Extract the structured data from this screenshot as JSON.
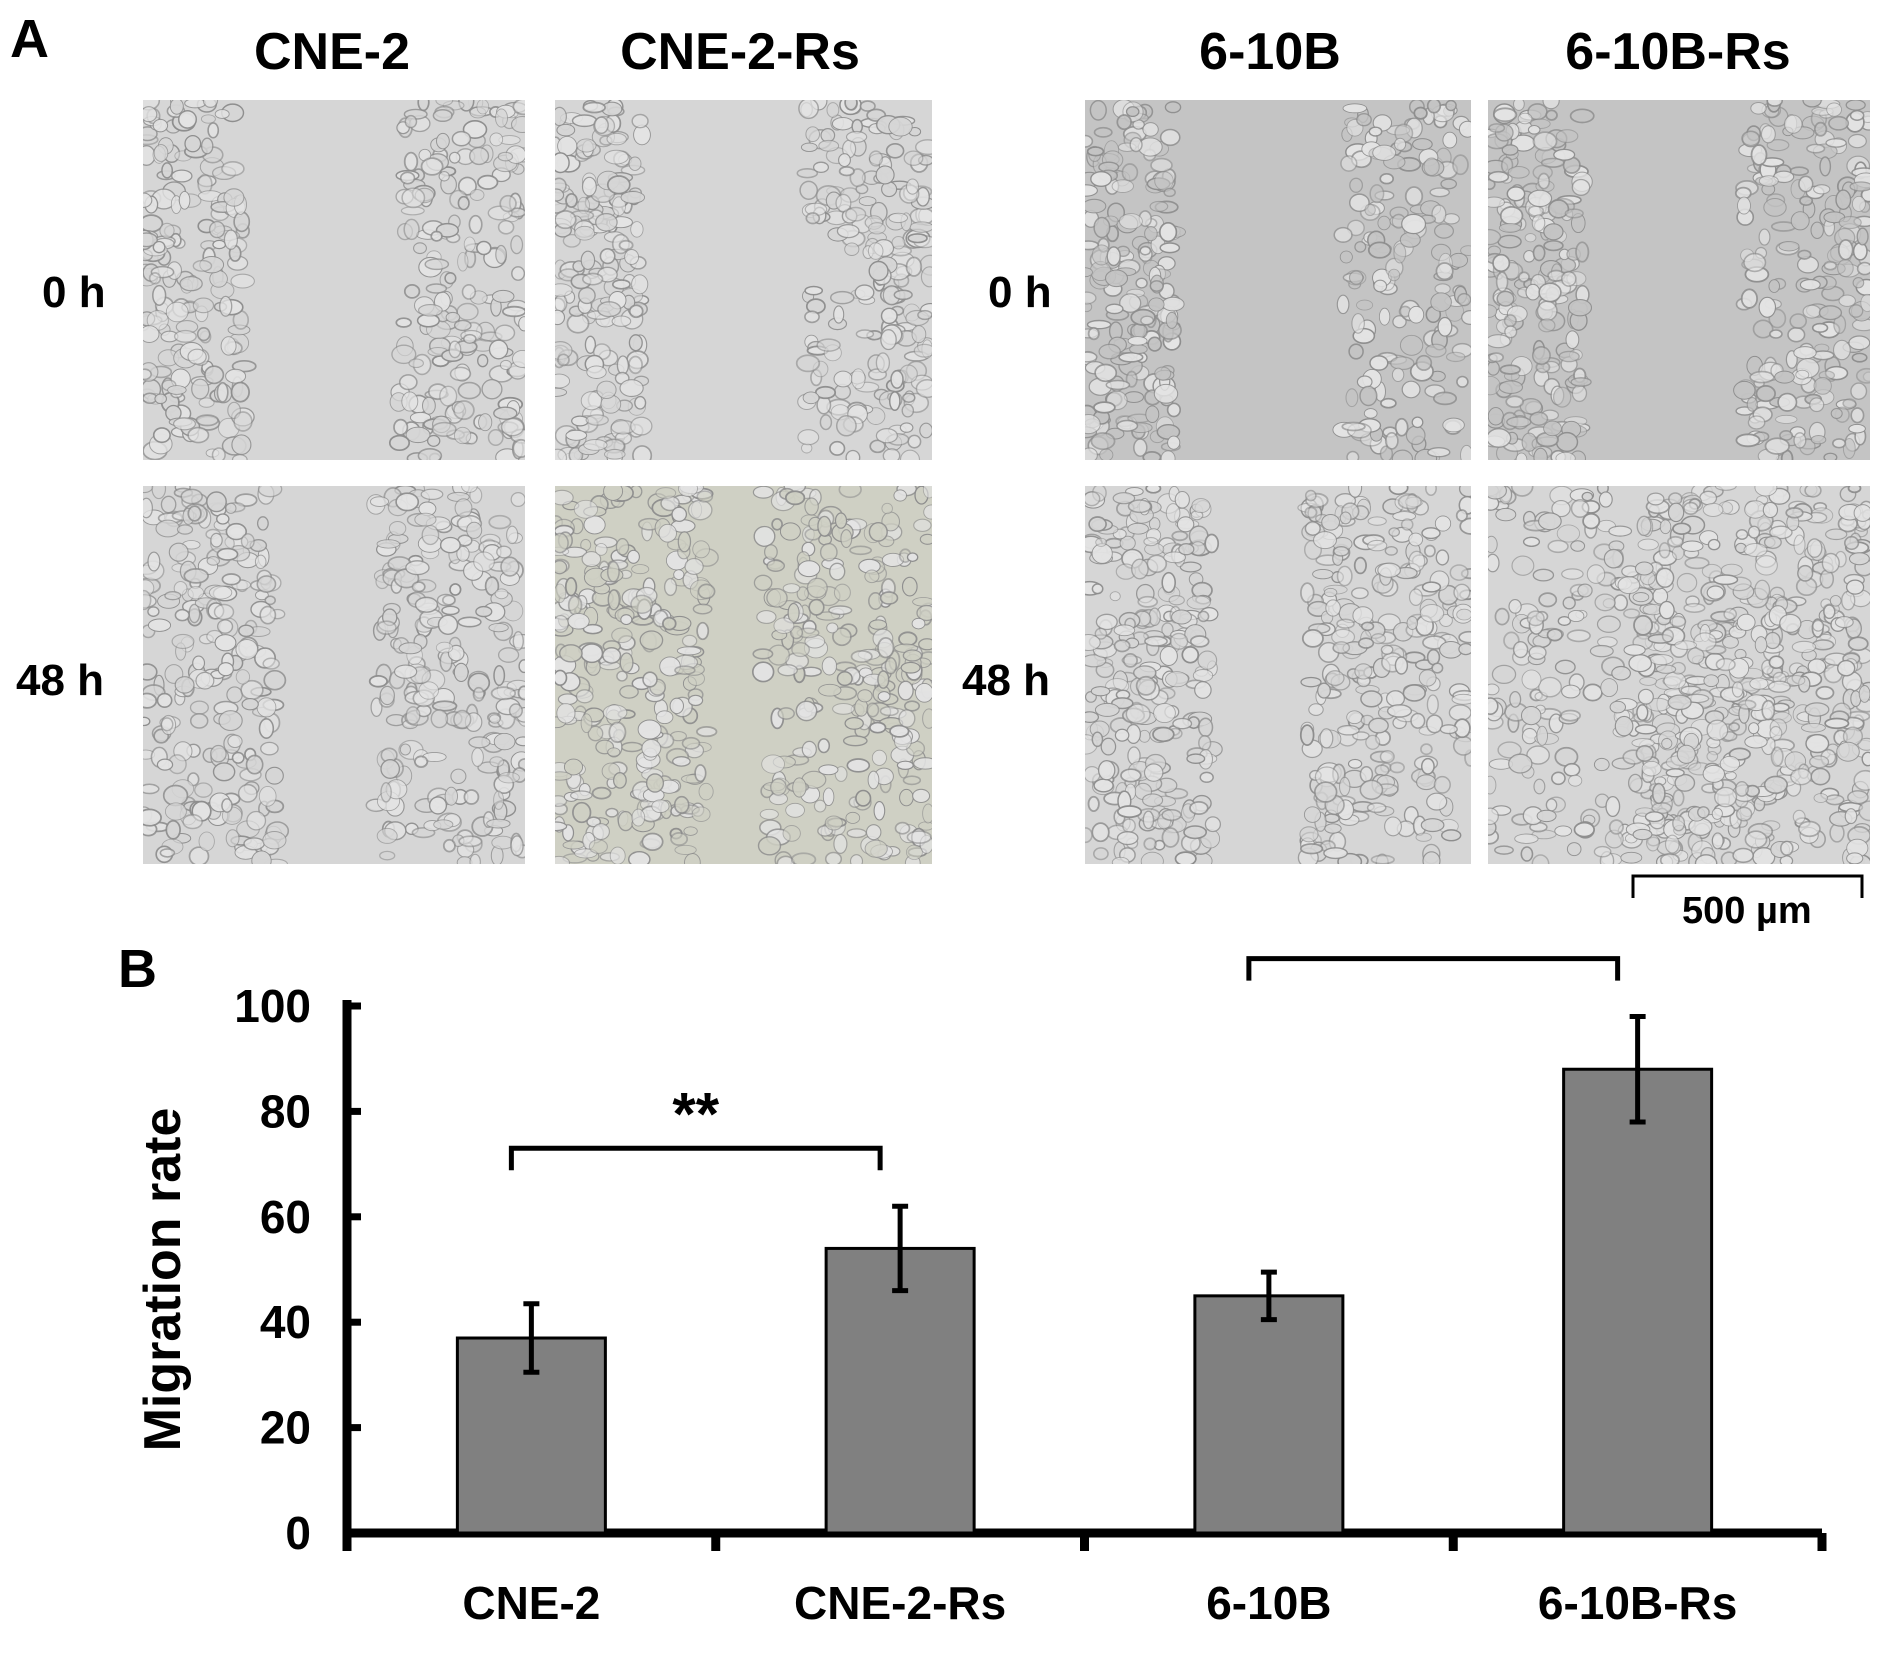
{
  "panel_a": {
    "label": "A",
    "groups": [
      {
        "columns": [
          "CNE-2",
          "CNE-2-Rs"
        ],
        "rows": [
          "0 h",
          "48 h"
        ]
      },
      {
        "columns": [
          "6-10B",
          "6-10B-Rs"
        ],
        "rows": [
          "0 h",
          "48 h"
        ]
      }
    ],
    "scale_bar": "500 µm"
  },
  "panel_b": {
    "label": "B"
  },
  "chart_data": {
    "type": "bar",
    "title": "",
    "xlabel": "",
    "ylabel": "Migration rate",
    "categories": [
      "CNE-2",
      "CNE-2-Rs",
      "6-10B",
      "6-10B-Rs"
    ],
    "values": [
      37,
      54,
      45,
      88
    ],
    "errors": [
      6.5,
      8,
      4.5,
      10
    ],
    "ylim": [
      0,
      100
    ],
    "yticks": [
      0,
      20,
      40,
      60,
      80,
      100
    ],
    "bar_color": "#808080",
    "grid": false,
    "significance": [
      {
        "from": 0,
        "to": 1,
        "label": "**"
      },
      {
        "from": 2,
        "to": 3,
        "label": "**"
      }
    ]
  },
  "colors": {
    "micro_light": "#d6d6d6",
    "micro_dark": "#c4c4c4",
    "micro_warm": "#cfd0c4",
    "cell": "#8e8e8e"
  }
}
